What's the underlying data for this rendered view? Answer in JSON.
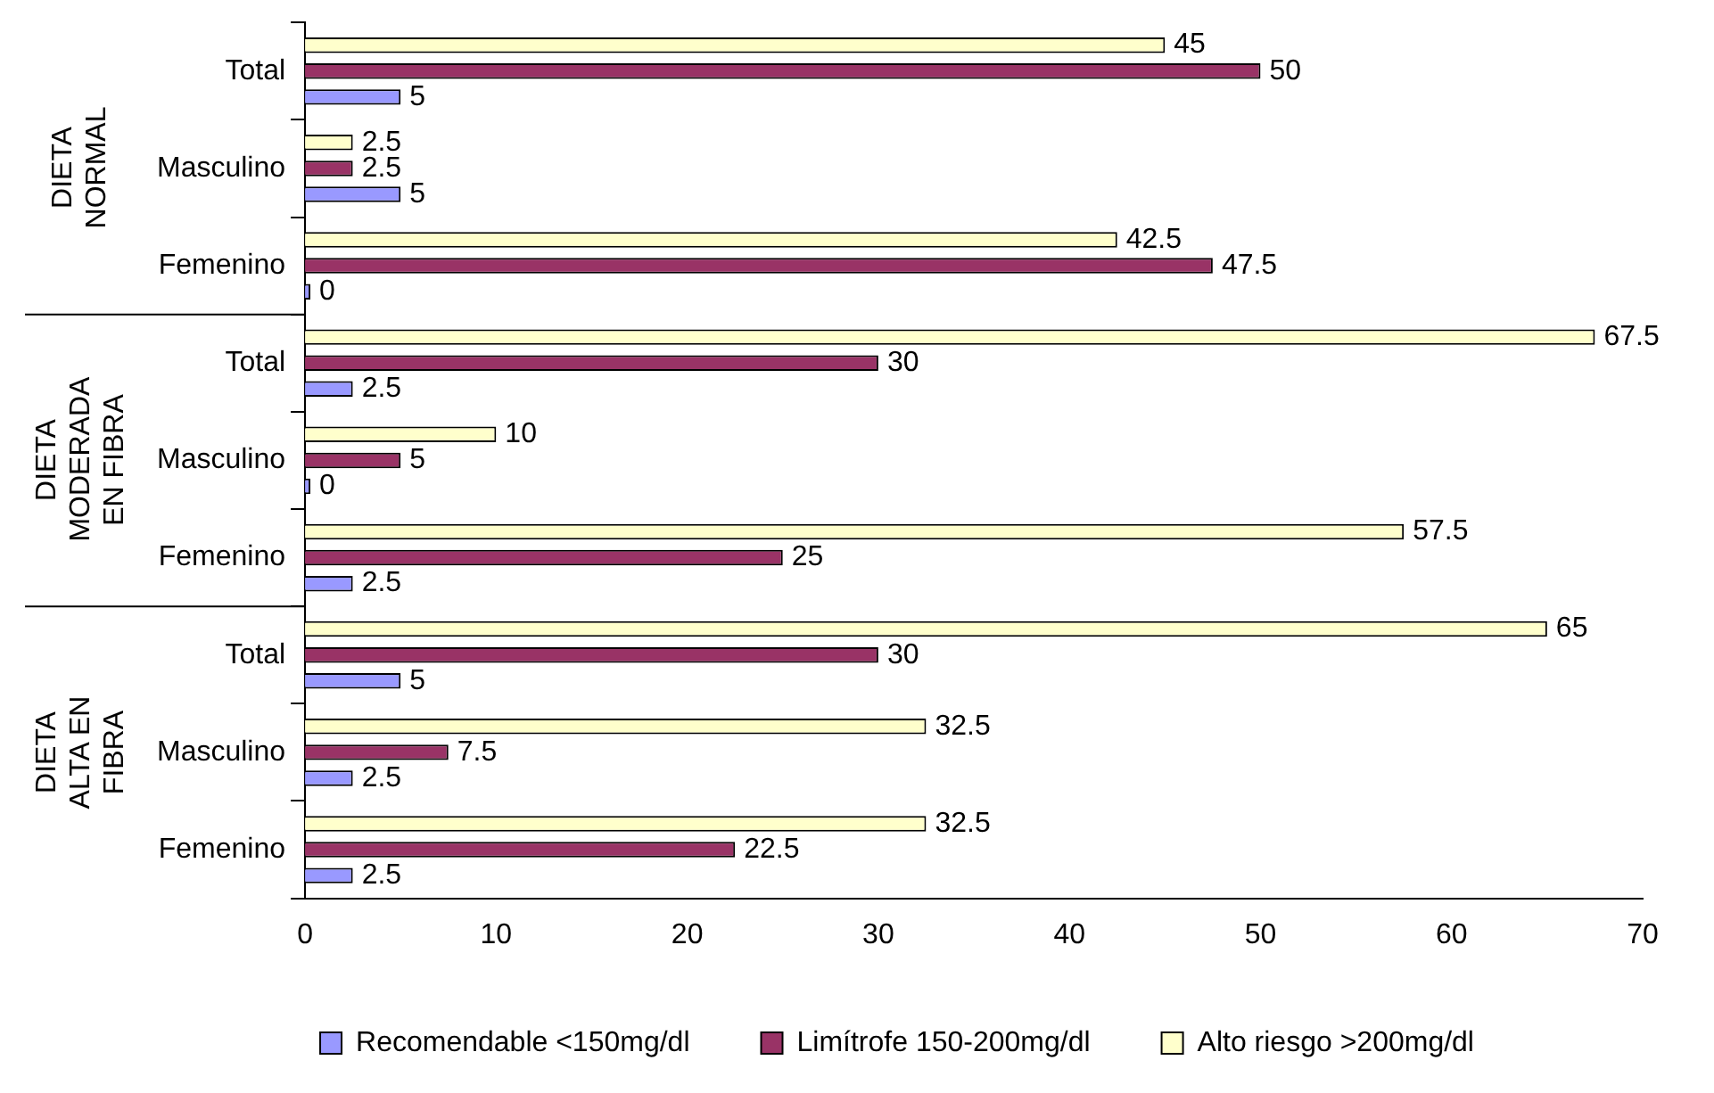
{
  "chart_data": {
    "type": "bar",
    "orientation": "horizontal",
    "categories": [
      "Total",
      "Masculino",
      "Femenino",
      "Total",
      "Masculino",
      "Femenino",
      "Total",
      "Masculino",
      "Femenino"
    ],
    "annotations": [
      "DIETA NORMAL",
      "DIETA MODERADA EN FIBRA",
      "DIETA ALTA EN FIBRA"
    ],
    "series": [
      {
        "name": "Recomendable <150mg/dl",
        "color": "#9999ff",
        "values": [
          5,
          5,
          0,
          2.5,
          0,
          2.5,
          5,
          2.5,
          2.5
        ]
      },
      {
        "name": "Limítrofe 150-200mg/dl",
        "color": "#993366",
        "values": [
          50,
          2.5,
          47.5,
          30,
          5,
          25,
          30,
          7.5,
          22.5
        ]
      },
      {
        "name": "Alto riesgo >200mg/dl",
        "color": "#ffffcc",
        "values": [
          45,
          2.5,
          42.5,
          67.5,
          10,
          57.5,
          65,
          32.5,
          32.5
        ]
      }
    ],
    "xlim": [
      0,
      70
    ],
    "xticks": [
      0,
      10,
      20,
      30,
      40,
      50,
      60,
      70
    ],
    "grid": false,
    "legend": "bottom",
    "data_labels": true
  }
}
